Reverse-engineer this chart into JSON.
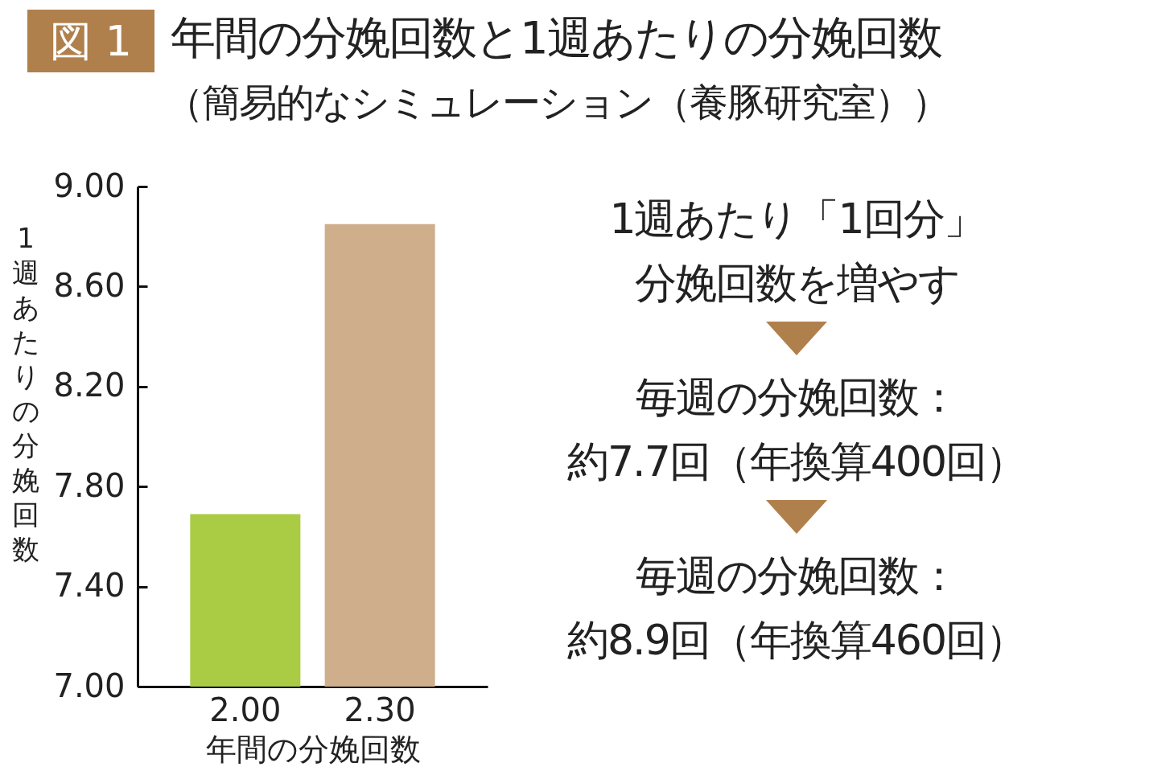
{
  "chart_data": {
    "type": "bar",
    "title": "年間の分娩回数と1週あたりの分娩回数",
    "subtitle": "（簡易的なシミュレーション（養豚研究室））",
    "xlabel": "年間の分娩回数",
    "ylabel": "1週あたりの分娩回数",
    "categories": [
      "2.00",
      "2.30"
    ],
    "values": [
      7.69,
      8.85
    ],
    "colors": [
      "#aacc44",
      "#cfae8c"
    ],
    "ylim": [
      7,
      9
    ],
    "yticks": [
      {
        "value": 7,
        "label": "7.00"
      },
      {
        "value": 7.4,
        "label": "7.40"
      },
      {
        "value": 7.8,
        "label": "7.80"
      },
      {
        "value": 8.2,
        "label": "8.20"
      },
      {
        "value": 8.6,
        "label": "8.60"
      },
      {
        "value": 9,
        "label": "9.00"
      }
    ],
    "grid": false,
    "annotations": [
      "図 1",
      "1週あたり「1回分」",
      "分娩回数を増やす",
      "毎週の分娩回数：",
      "約7.7回（年換算400回）",
      "毎週の分娩回数：",
      "約8.9回（年換算460回）"
    ]
  }
}
